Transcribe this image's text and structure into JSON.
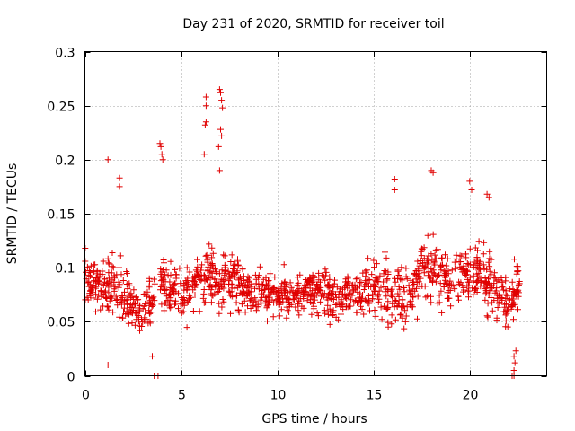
{
  "chart_data": {
    "type": "scatter",
    "title": "Day 231 of 2020, SRMTID for receiver toil",
    "xlabel": "GPS time / hours",
    "ylabel": "SRMTID / TECUs",
    "xlim": [
      0,
      24
    ],
    "ylim": [
      0,
      0.3
    ],
    "x_ticks": [
      0,
      5,
      10,
      15,
      20
    ],
    "x_tick_labels": [
      "0",
      "5",
      "10",
      "15",
      "20"
    ],
    "y_ticks": [
      0,
      0.05,
      0.1,
      0.15,
      0.2,
      0.25,
      0.3
    ],
    "y_tick_labels": [
      "0",
      "0.05",
      "0.1",
      "0.15",
      "0.2",
      "0.25",
      "0.3"
    ],
    "grid": true,
    "marker": "+",
    "color": "#e00000",
    "series": [
      {
        "name": "SRMTID",
        "trend": [
          [
            0.0,
            0.085,
            0.03
          ],
          [
            0.5,
            0.085,
            0.03
          ],
          [
            1.0,
            0.08,
            0.035
          ],
          [
            1.5,
            0.085,
            0.035
          ],
          [
            2.0,
            0.075,
            0.03
          ],
          [
            2.5,
            0.065,
            0.03
          ],
          [
            3.0,
            0.06,
            0.025
          ],
          [
            3.5,
            0.07,
            0.03
          ],
          [
            4.0,
            0.08,
            0.03
          ],
          [
            4.5,
            0.08,
            0.025
          ],
          [
            5.0,
            0.08,
            0.03
          ],
          [
            5.5,
            0.08,
            0.03
          ],
          [
            6.0,
            0.09,
            0.035
          ],
          [
            6.5,
            0.09,
            0.035
          ],
          [
            7.0,
            0.085,
            0.035
          ],
          [
            7.5,
            0.09,
            0.03
          ],
          [
            8.0,
            0.085,
            0.03
          ],
          [
            8.5,
            0.08,
            0.025
          ],
          [
            9.0,
            0.08,
            0.03
          ],
          [
            10.0,
            0.075,
            0.025
          ],
          [
            11.0,
            0.075,
            0.025
          ],
          [
            12.0,
            0.08,
            0.025
          ],
          [
            13.0,
            0.075,
            0.025
          ],
          [
            14.0,
            0.075,
            0.025
          ],
          [
            15.0,
            0.085,
            0.03
          ],
          [
            16.0,
            0.075,
            0.035
          ],
          [
            17.0,
            0.08,
            0.035
          ],
          [
            17.5,
            0.1,
            0.035
          ],
          [
            18.0,
            0.1,
            0.035
          ],
          [
            19.0,
            0.085,
            0.03
          ],
          [
            20.0,
            0.095,
            0.035
          ],
          [
            20.5,
            0.1,
            0.035
          ],
          [
            21.0,
            0.085,
            0.035
          ],
          [
            21.5,
            0.075,
            0.03
          ],
          [
            22.0,
            0.065,
            0.03
          ],
          [
            22.5,
            0.085,
            0.025
          ],
          [
            22.8,
            0.09,
            0.025
          ]
        ],
        "notable_points": [
          [
            1.2,
            0.2
          ],
          [
            1.8,
            0.183
          ],
          [
            1.8,
            0.175
          ],
          [
            3.9,
            0.215
          ],
          [
            3.95,
            0.212
          ],
          [
            4.0,
            0.205
          ],
          [
            4.05,
            0.2
          ],
          [
            6.3,
            0.258
          ],
          [
            6.3,
            0.25
          ],
          [
            6.3,
            0.235
          ],
          [
            6.25,
            0.232
          ],
          [
            6.2,
            0.205
          ],
          [
            7.0,
            0.265
          ],
          [
            7.05,
            0.262
          ],
          [
            7.1,
            0.255
          ],
          [
            7.15,
            0.248
          ],
          [
            7.05,
            0.228
          ],
          [
            7.1,
            0.222
          ],
          [
            6.95,
            0.212
          ],
          [
            7.0,
            0.19
          ],
          [
            16.1,
            0.182
          ],
          [
            16.1,
            0.172
          ],
          [
            18.0,
            0.19
          ],
          [
            18.1,
            0.188
          ],
          [
            20.0,
            0.18
          ],
          [
            20.1,
            0.172
          ],
          [
            20.9,
            0.168
          ],
          [
            21.0,
            0.165
          ],
          [
            1.2,
            0.01
          ],
          [
            3.5,
            0.018
          ],
          [
            3.6,
            0.0
          ],
          [
            3.8,
            0.0
          ],
          [
            22.2,
            0.0
          ],
          [
            22.3,
            0.0
          ],
          [
            22.3,
            0.005
          ],
          [
            22.35,
            0.012
          ],
          [
            22.3,
            0.018
          ],
          [
            22.4,
            0.023
          ]
        ],
        "gaps": [
          [
            3.65,
            3.9
          ],
          [
            22.6,
            24
          ]
        ],
        "point_count": 1400
      }
    ]
  }
}
